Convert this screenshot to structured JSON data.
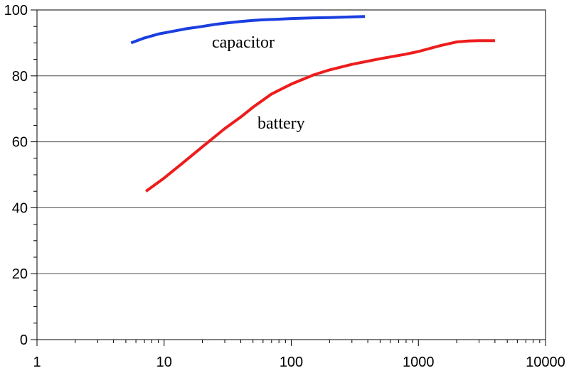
{
  "chart_data": {
    "type": "line",
    "xscale": "log",
    "xlim": [
      1,
      10000
    ],
    "ylim": [
      0,
      100
    ],
    "xticks": [
      1,
      10,
      100,
      1000,
      10000
    ],
    "xtick_labels": [
      "1",
      "10",
      "100",
      "1000",
      "10000"
    ],
    "yticks": [
      0,
      20,
      40,
      60,
      80,
      100
    ],
    "ytick_labels": [
      "0",
      "20",
      "40",
      "60",
      "80",
      "100"
    ],
    "ygrid": true,
    "xgrid": false,
    "legend": "none",
    "series": [
      {
        "name": "capacitor",
        "color": "#1a3fe0",
        "x": [
          5.5,
          7,
          9,
          12,
          15,
          20,
          25,
          30,
          40,
          50,
          60,
          80,
          100,
          150,
          200,
          300,
          380
        ],
        "y": [
          90,
          91.5,
          92.7,
          93.6,
          94.3,
          95.0,
          95.6,
          96.0,
          96.5,
          96.8,
          97.0,
          97.2,
          97.4,
          97.6,
          97.7,
          97.9,
          98
        ]
      },
      {
        "name": "battery",
        "color": "#ee1c1c",
        "x": [
          7.2,
          10,
          15,
          20,
          30,
          40,
          50,
          70,
          100,
          150,
          200,
          300,
          500,
          800,
          1000,
          1500,
          2000,
          2500,
          3000,
          4000
        ],
        "y": [
          45,
          49,
          54.5,
          58.5,
          64,
          67.5,
          70.5,
          74.5,
          77.5,
          80.3,
          81.8,
          83.5,
          85.2,
          86.6,
          87.4,
          89.2,
          90.3,
          90.6,
          90.7,
          90.7
        ]
      }
    ]
  }
}
